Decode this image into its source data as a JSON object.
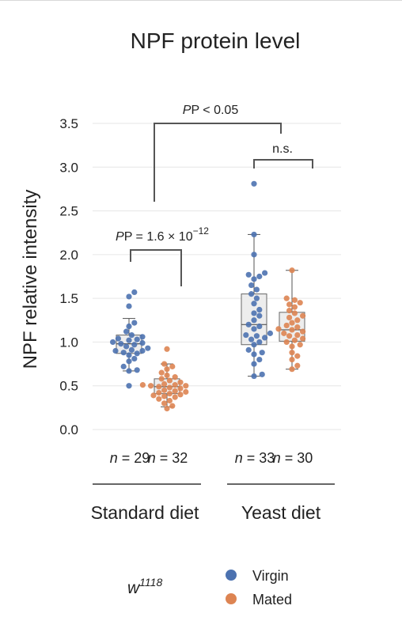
{
  "chart_data": {
    "type": "box-swarm",
    "title": "NPF protein level",
    "ylabel": "NPF relative intensity",
    "ylim": [
      0.0,
      3.5
    ],
    "yticks": [
      "0.0",
      "0.5",
      "1.0",
      "1.5",
      "2.0",
      "2.5",
      "3.0",
      "3.5"
    ],
    "grid": true,
    "groups": [
      {
        "label": "Standard diet",
        "boxes": [
          {
            "series": "Virgin",
            "n_label": "n = 29",
            "stats": {
              "whisker_low": 0.67,
              "q1": 0.87,
              "median": 0.98,
              "q3": 1.08,
              "whisker_high": 1.27
            },
            "values": [
              0.5,
              0.67,
              0.68,
              0.72,
              0.78,
              0.81,
              0.85,
              0.87,
              0.88,
              0.9,
              0.9,
              0.91,
              0.93,
              0.95,
              0.97,
              0.98,
              0.99,
              1.0,
              1.02,
              1.03,
              1.04,
              1.06,
              1.08,
              1.12,
              1.18,
              1.22,
              1.41,
              1.52,
              1.57
            ]
          },
          {
            "series": "Mated",
            "n_label": "n = 32",
            "stats": {
              "whisker_low": 0.26,
              "q1": 0.41,
              "median": 0.49,
              "q3": 0.58,
              "whisker_high": 0.75
            },
            "values": [
              0.24,
              0.27,
              0.3,
              0.33,
              0.35,
              0.37,
              0.38,
              0.39,
              0.4,
              0.41,
              0.42,
              0.43,
              0.44,
              0.45,
              0.47,
              0.48,
              0.49,
              0.5,
              0.5,
              0.51,
              0.51,
              0.52,
              0.54,
              0.56,
              0.58,
              0.6,
              0.62,
              0.65,
              0.69,
              0.72,
              0.75,
              0.92
            ]
          }
        ]
      },
      {
        "label": "Yeast diet",
        "boxes": [
          {
            "series": "Virgin",
            "n_label": "n = 33",
            "stats": {
              "whisker_low": 0.61,
              "q1": 0.97,
              "median": 1.2,
              "q3": 1.55,
              "whisker_high": 2.23
            },
            "values": [
              0.61,
              0.63,
              0.75,
              0.8,
              0.86,
              0.88,
              0.91,
              0.97,
              1.0,
              1.03,
              1.05,
              1.07,
              1.08,
              1.1,
              1.15,
              1.18,
              1.2,
              1.25,
              1.3,
              1.33,
              1.37,
              1.44,
              1.5,
              1.55,
              1.6,
              1.65,
              1.72,
              1.75,
              1.77,
              1.79,
              2.0,
              2.23,
              2.81
            ]
          },
          {
            "series": "Mated",
            "n_label": "n = 30",
            "stats": {
              "whisker_low": 0.69,
              "q1": 1.01,
              "median": 1.14,
              "q3": 1.34,
              "whisker_high": 1.82
            },
            "values": [
              0.69,
              0.73,
              0.8,
              0.84,
              0.88,
              0.95,
              0.97,
              1.0,
              1.02,
              1.04,
              1.07,
              1.08,
              1.1,
              1.12,
              1.14,
              1.15,
              1.17,
              1.19,
              1.22,
              1.25,
              1.28,
              1.3,
              1.33,
              1.36,
              1.4,
              1.43,
              1.45,
              1.48,
              1.5,
              1.82
            ]
          }
        ]
      }
    ],
    "annotations": [
      {
        "text": "P = 1.6 × 10",
        "sup": "−12"
      },
      {
        "text": "P < 0.05"
      },
      {
        "text": "n.s."
      }
    ],
    "legend": {
      "position": "bottom-right",
      "entries": [
        {
          "name": "Virgin",
          "color": "#4c72b0"
        },
        {
          "name": "Mated",
          "color": "#dd8452"
        }
      ]
    },
    "genotype": {
      "base": "w",
      "sup": "1118"
    }
  }
}
